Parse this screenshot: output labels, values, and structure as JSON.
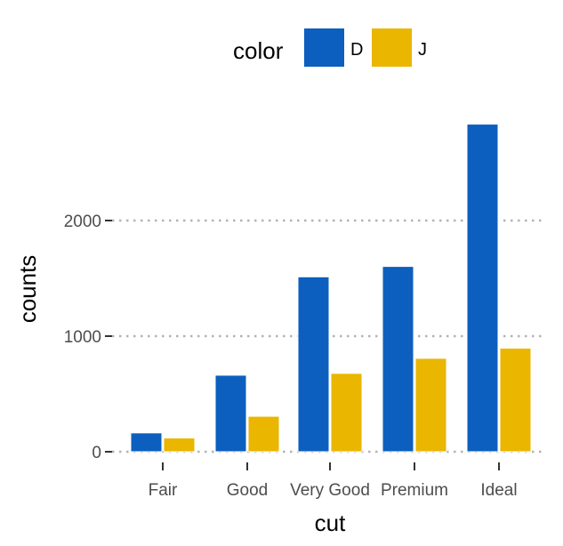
{
  "chart_data": {
    "type": "bar",
    "title": "",
    "xlabel": "cut",
    "ylabel": "counts",
    "categories": [
      "Fair",
      "Good",
      "Very Good",
      "Premium",
      "Ideal"
    ],
    "series": [
      {
        "name": "D",
        "color": "#0C5FBE",
        "values": [
          163,
          662,
          1513,
          1603,
          2834
        ]
      },
      {
        "name": "J",
        "color": "#EAB600",
        "values": [
          119,
          307,
          678,
          808,
          896
        ]
      }
    ],
    "ylim": [
      -80,
      3000
    ],
    "yticks": [
      0,
      1000,
      2000
    ],
    "ytick_labels": [
      "0",
      "1000",
      "2000"
    ],
    "grid": "horizontal-dotted",
    "legend": {
      "title": "color",
      "position": "top",
      "entries": [
        "D",
        "J"
      ]
    }
  }
}
